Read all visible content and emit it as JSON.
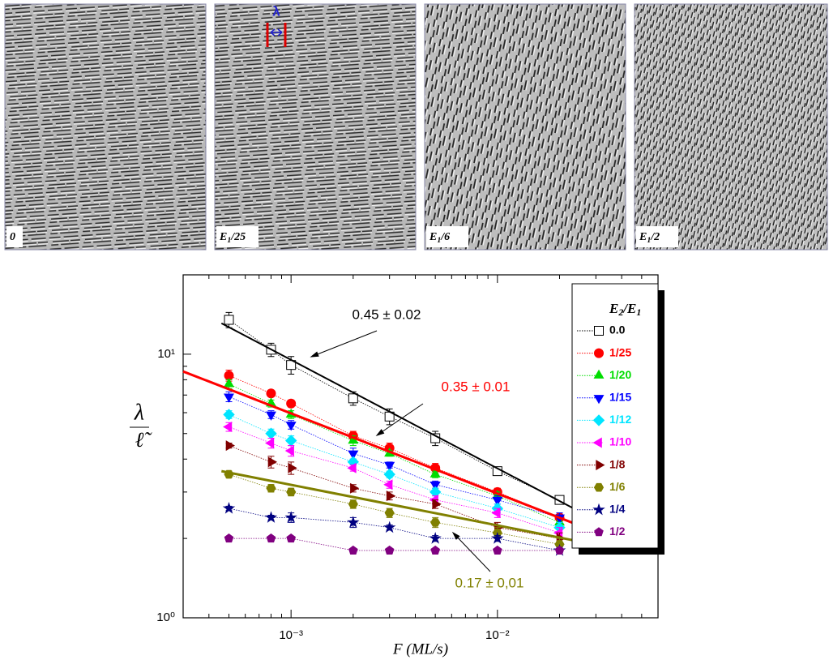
{
  "panels": [
    {
      "parts": [
        "0"
      ],
      "sub": [
        false
      ]
    },
    {
      "parts": [
        "E",
        "1",
        "/25"
      ],
      "sub": [
        false,
        true,
        false
      ]
    },
    {
      "parts": [
        "E",
        "1",
        "/6"
      ],
      "sub": [
        false,
        true,
        false
      ]
    },
    {
      "parts": [
        "E",
        "1",
        "/2"
      ],
      "sub": [
        false,
        true,
        false
      ]
    }
  ],
  "lambda_label": "λ",
  "chart_data": {
    "type": "line",
    "log_x": true,
    "log_y": true,
    "xlabel": "F (ML/s)",
    "ylabel": {
      "numerator": "λ",
      "denominator": "ℓ̃"
    },
    "legend_title": {
      "parts": [
        "E",
        "2",
        "/E",
        "1"
      ],
      "sub": [
        false,
        true,
        false,
        true
      ]
    },
    "legend": "right",
    "xlim": [
      0.0003,
      0.06
    ],
    "ylim": [
      1,
      20
    ],
    "xticks": [
      {
        "value": 0.001,
        "label": "10⁻³"
      },
      {
        "value": 0.01,
        "label": "10⁻²"
      }
    ],
    "yticks": [
      {
        "value": 1,
        "label": "10⁰"
      },
      {
        "value": 10,
        "label": "10¹"
      }
    ],
    "xminorticks": [
      0.0004,
      0.0005,
      0.0006,
      0.0007,
      0.0008,
      0.0009,
      0.002,
      0.003,
      0.004,
      0.005,
      0.006,
      0.007,
      0.008,
      0.009,
      0.02,
      0.03,
      0.04,
      0.05
    ],
    "yminorticks": [
      2,
      3,
      4,
      5,
      6,
      7,
      8,
      9,
      20
    ],
    "x": [
      0.0005,
      0.0008,
      0.001,
      0.002,
      0.003,
      0.005,
      0.01,
      0.02
    ],
    "series": [
      {
        "name": "0.0",
        "color": "#000000",
        "marker": "open-square",
        "values": [
          13.5,
          10.4,
          9.1,
          6.8,
          5.8,
          4.8,
          3.6,
          2.8
        ],
        "errors": [
          0.9,
          0.6,
          0.7,
          0.4,
          0.4,
          0.3,
          0.1,
          0.1
        ]
      },
      {
        "name": "1/25",
        "color": "#ff0000",
        "marker": "circle",
        "values": [
          8.3,
          7.1,
          6.5,
          4.9,
          4.4,
          3.7,
          3.0,
          2.4
        ],
        "errors": [
          0.4,
          0.2,
          0.2,
          0.2,
          0.2,
          0.15,
          0.1,
          0.1
        ]
      },
      {
        "name": "1/20",
        "color": "#00dd00",
        "marker": "triangle-up",
        "values": [
          7.7,
          6.5,
          5.9,
          4.7,
          4.2,
          3.5,
          2.9,
          2.3
        ],
        "errors": [
          0.3,
          0.2,
          0.2,
          0.2,
          0.1,
          0.1,
          0.1,
          0.1
        ]
      },
      {
        "name": "1/15",
        "color": "#0000ff",
        "marker": "triangle-down",
        "values": [
          6.9,
          5.9,
          5.4,
          4.2,
          3.8,
          3.2,
          2.8,
          2.4
        ],
        "errors": [
          0.3,
          0.2,
          0.2,
          0.2,
          0.1,
          0.1,
          0.1,
          0.1
        ]
      },
      {
        "name": "1/12",
        "color": "#00e5ff",
        "marker": "diamond",
        "values": [
          5.9,
          5.0,
          4.7,
          3.9,
          3.5,
          3.0,
          2.6,
          2.2
        ],
        "errors": [
          0.2,
          0.2,
          0.2,
          0.1,
          0.1,
          0.1,
          0.1,
          0.1
        ]
      },
      {
        "name": "1/10",
        "color": "#ff00ff",
        "marker": "triangle-left",
        "values": [
          5.3,
          4.6,
          4.3,
          3.7,
          3.2,
          2.8,
          2.5,
          2.1
        ],
        "errors": [
          0.2,
          0.2,
          0.2,
          0.1,
          0.1,
          0.1,
          0.1,
          0.1
        ]
      },
      {
        "name": "1/8",
        "color": "#800000",
        "marker": "triangle-right",
        "values": [
          4.5,
          3.9,
          3.7,
          3.1,
          2.9,
          2.7,
          2.2,
          2.0
        ],
        "errors": [
          0.1,
          0.2,
          0.2,
          0.1,
          0.1,
          0.1,
          0.1,
          0.1
        ]
      },
      {
        "name": "1/6",
        "color": "#808000",
        "marker": "hexagon",
        "values": [
          3.5,
          3.1,
          3.0,
          2.7,
          2.5,
          2.3,
          2.1,
          1.9
        ],
        "errors": [
          0.1,
          0.1,
          0.1,
          0.1,
          0.1,
          0.1,
          0.1,
          0.1
        ]
      },
      {
        "name": "1/4",
        "color": "#000080",
        "marker": "star",
        "values": [
          2.6,
          2.4,
          2.4,
          2.3,
          2.2,
          2.0,
          2.0,
          1.8
        ],
        "errors": [
          0.05,
          0.05,
          0.1,
          0.1,
          0.05,
          0.05,
          0.05,
          0.05
        ]
      },
      {
        "name": "1/2",
        "color": "#800080",
        "marker": "pentagon",
        "values": [
          2.0,
          2.0,
          2.0,
          1.8,
          1.8,
          1.8,
          1.8,
          1.8
        ],
        "errors": [
          0.02,
          0.02,
          0.02,
          0.02,
          0.02,
          0.02,
          0.02,
          0.02
        ]
      }
    ],
    "fits": [
      {
        "label": "0.45 ± 0.02",
        "color": "#000000",
        "x": [
          0.00046,
          0.0234
        ],
        "y": [
          13.1,
          2.6
        ]
      },
      {
        "label": "0.35 ± 0.01",
        "color": "#ff0000",
        "x": [
          0.0003,
          0.0265
        ],
        "y": [
          8.6,
          2.2
        ]
      },
      {
        "label": "0.17 ± 0,01",
        "color": "#808000",
        "x": [
          0.00046,
          0.0256
        ],
        "y": [
          3.6,
          1.94
        ]
      }
    ]
  }
}
